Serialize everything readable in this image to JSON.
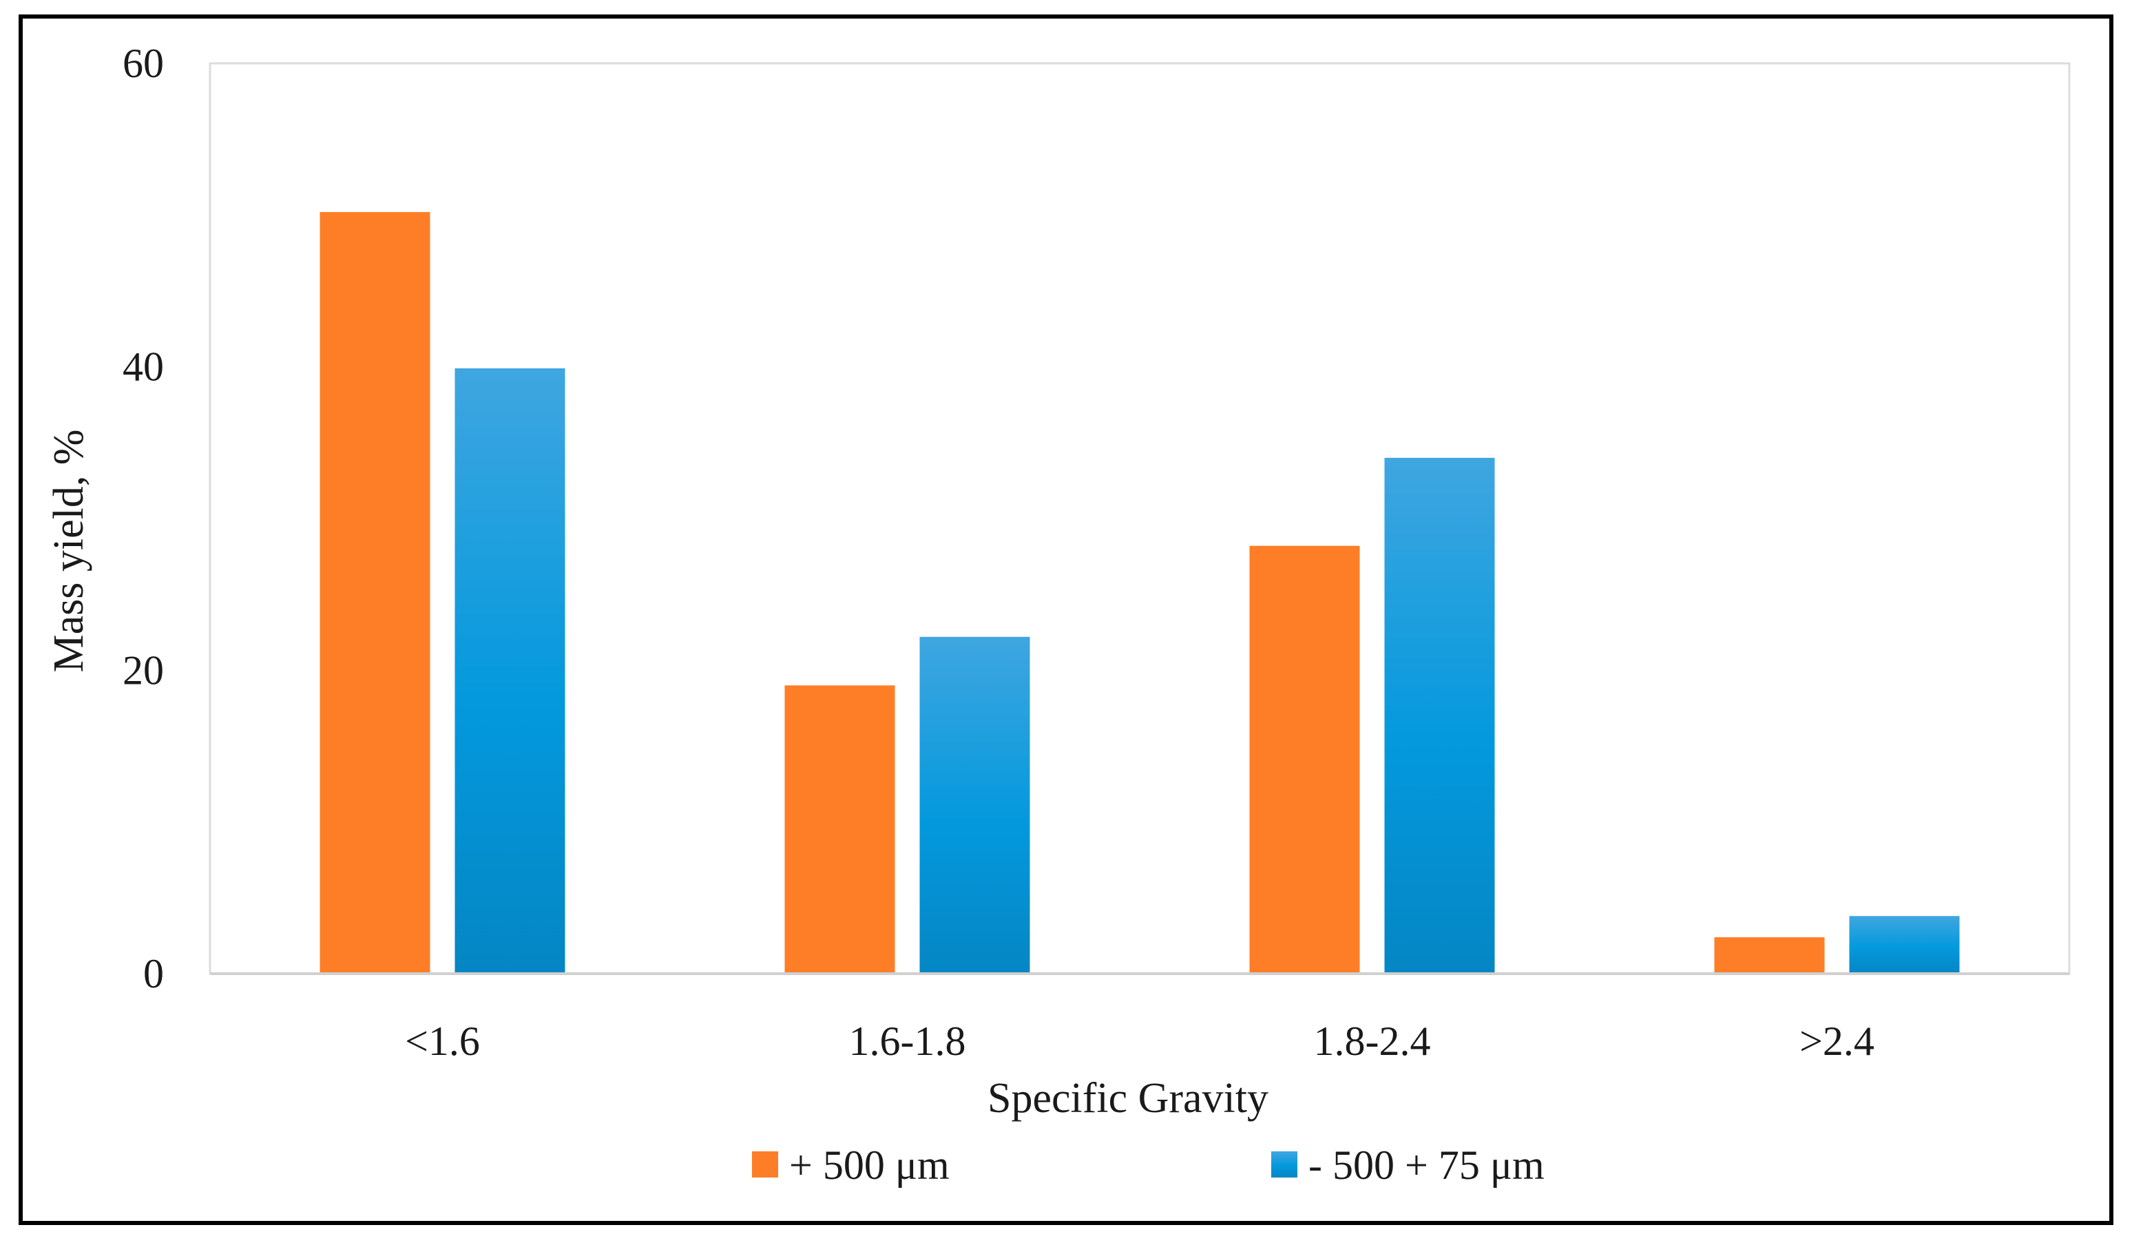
{
  "chart_data": {
    "type": "bar",
    "title": "",
    "xlabel": "Specific Gravity",
    "ylabel": "Mass yield, %",
    "categories": [
      "<1.6",
      "1.6-1.8",
      "1.8-2.4",
      ">2.4"
    ],
    "series": [
      {
        "name": "+ 500 μm",
        "color": "#fd7e26",
        "values": [
          50.2,
          19.0,
          28.2,
          2.4
        ]
      },
      {
        "name": "- 500 + 75 μm",
        "color": "#0595d8",
        "values": [
          39.9,
          22.2,
          34.0,
          3.8
        ]
      }
    ],
    "ylim": [
      0,
      60
    ],
    "yticks": [
      "0",
      "20",
      "40",
      "60"
    ],
    "grid": false,
    "legend_position": "bottom"
  }
}
